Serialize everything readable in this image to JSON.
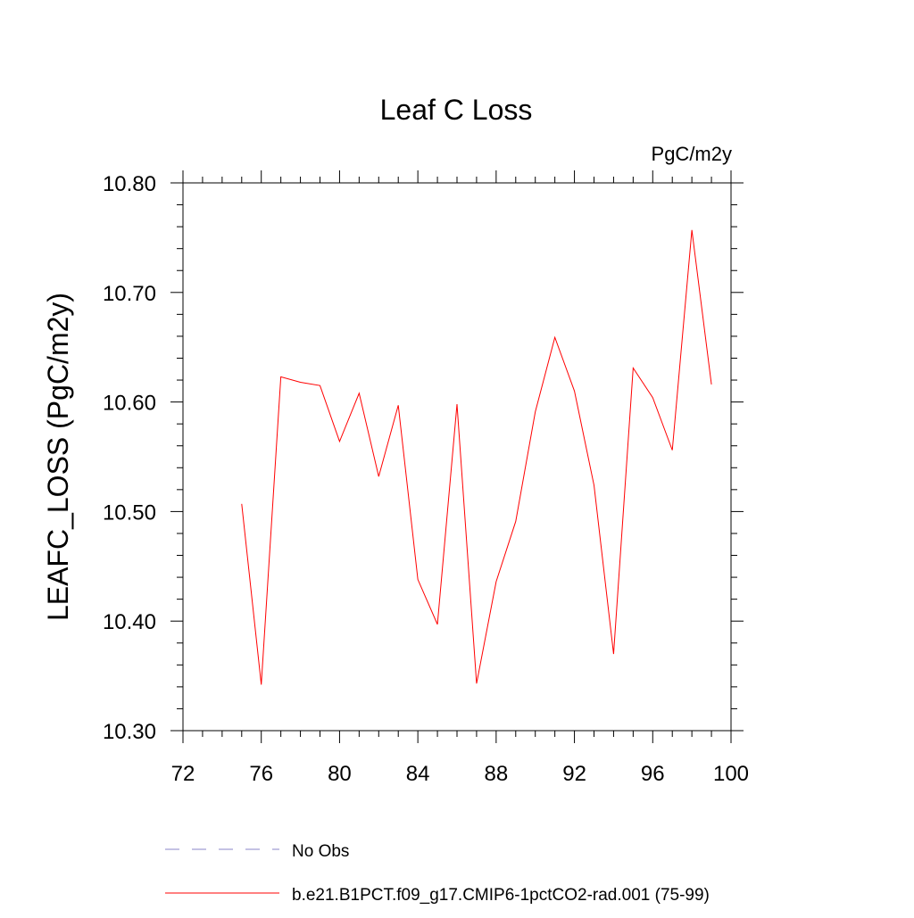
{
  "chart_data": {
    "type": "line",
    "title": "Leaf C Loss",
    "units_label": "PgC/m2y",
    "ylabel": "LEAFC_LOSS  (PgC/m2y)",
    "xlabel": "",
    "xlim": [
      72,
      100
    ],
    "ylim": [
      10.3,
      10.8
    ],
    "x_ticks": [
      "72",
      "76",
      "80",
      "84",
      "88",
      "92",
      "96",
      "100"
    ],
    "y_ticks": [
      "10.30",
      "10.40",
      "10.50",
      "10.60",
      "10.70",
      "10.80"
    ],
    "grid": false,
    "legend_position": "bottom",
    "series": [
      {
        "name": "No Obs",
        "color": "#8a84c8",
        "dash": "dashed",
        "x": [],
        "values": []
      },
      {
        "name": "b.e21.B1PCT.f09_g17.CMIP6-1pctCO2-rad.001 (75-99)",
        "color": "#ff0000",
        "dash": "solid",
        "x": [
          75,
          76,
          77,
          78,
          79,
          80,
          81,
          82,
          83,
          84,
          85,
          86,
          87,
          88,
          89,
          90,
          91,
          92,
          93,
          94,
          95,
          96,
          97,
          98,
          99
        ],
        "values": [
          10.507,
          10.342,
          10.623,
          10.618,
          10.615,
          10.564,
          10.608,
          10.532,
          10.597,
          10.438,
          10.397,
          10.598,
          10.343,
          10.436,
          10.491,
          10.591,
          10.659,
          10.61,
          10.524,
          10.37,
          10.631,
          10.604,
          10.556,
          10.757,
          10.616
        ]
      }
    ]
  }
}
